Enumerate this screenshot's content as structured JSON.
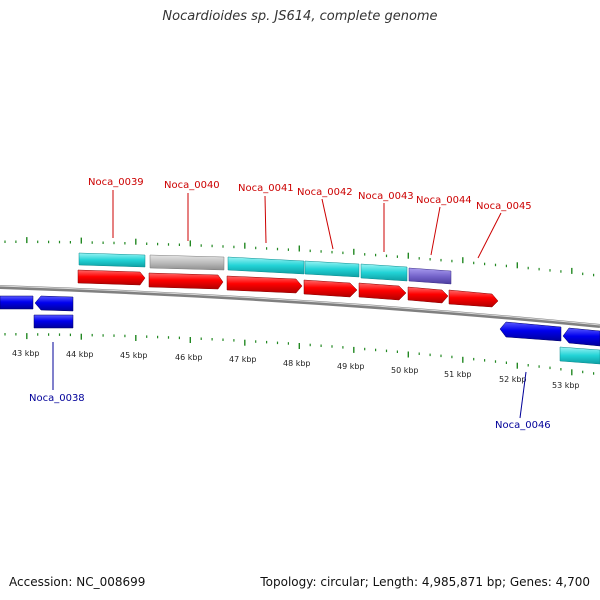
{
  "title": "Nocardioides sp. JS614, complete genome",
  "footer": {
    "accession": "Accession: NC_008699",
    "summary": "Topology: circular; Length: 4,985,871 bp; Genes: 4,700"
  },
  "colors": {
    "forward_label": "#cc0000",
    "reverse_label": "#000099",
    "forward_cds": "#ff0000",
    "reverse_cds": "#0000ee",
    "gene_cyan": "#22d3d6",
    "gene_gray": "#bdbdbd",
    "gene_purple": "#7766cc",
    "tick": "#228822",
    "backbone": "#888888"
  },
  "scale": {
    "labels": [
      "43 kbp",
      "44 kbp",
      "45 kbp",
      "46 kbp",
      "47 kbp",
      "48 kbp",
      "49 kbp",
      "50 kbp",
      "51 kbp",
      "52 kbp",
      "53 kbp"
    ]
  },
  "forward_genes": [
    {
      "name": "Noca_0039"
    },
    {
      "name": "Noca_0040"
    },
    {
      "name": "Noca_0041"
    },
    {
      "name": "Noca_0042"
    },
    {
      "name": "Noca_0043"
    },
    {
      "name": "Noca_0044"
    },
    {
      "name": "Noca_0045"
    }
  ],
  "reverse_genes": [
    {
      "name": "Noca_0038"
    },
    {
      "name": "Noca_0046"
    }
  ]
}
